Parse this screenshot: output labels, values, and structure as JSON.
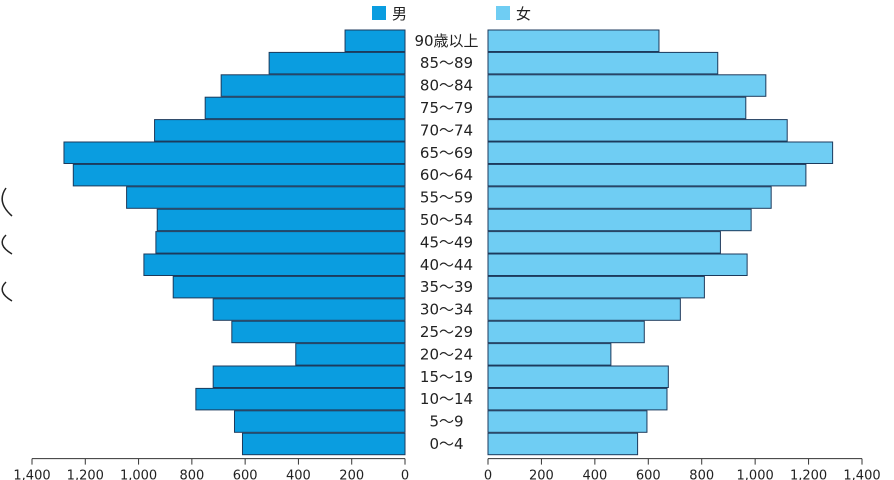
{
  "chart_data": {
    "type": "bar",
    "orientation": "horizontal",
    "layout": "population-pyramid",
    "categories": [
      "90歳以上",
      "85〜89",
      "80〜84",
      "75〜79",
      "70〜74",
      "65〜69",
      "60〜64",
      "55〜59",
      "50〜54",
      "45〜49",
      "40〜44",
      "35〜39",
      "30〜34",
      "25〜29",
      "20〜24",
      "15〜19",
      "10〜14",
      "5〜9",
      "0〜4"
    ],
    "series": [
      {
        "name": "男",
        "side": "left",
        "color": "#0a9de0",
        "values": [
          225,
          510,
          690,
          750,
          940,
          1280,
          1245,
          1045,
          930,
          935,
          980,
          870,
          720,
          650,
          410,
          720,
          785,
          640,
          610
        ]
      },
      {
        "name": "女",
        "side": "right",
        "color": "#6fcdf3",
        "values": [
          640,
          860,
          1040,
          965,
          1120,
          1290,
          1190,
          1060,
          985,
          870,
          970,
          810,
          720,
          585,
          460,
          675,
          670,
          595,
          560
        ]
      }
    ],
    "xlim": [
      0,
      1400
    ],
    "x_ticks": [
      "1,400",
      "1,200",
      "1,000",
      "800",
      "600",
      "400",
      "200",
      "0"
    ],
    "x_ticks_right": [
      "0",
      "200",
      "400",
      "600",
      "800",
      "1,000",
      "1,200",
      "1,400"
    ],
    "legend": {
      "placement": "top-center",
      "items": [
        "男",
        "女"
      ]
    },
    "grid": false
  }
}
